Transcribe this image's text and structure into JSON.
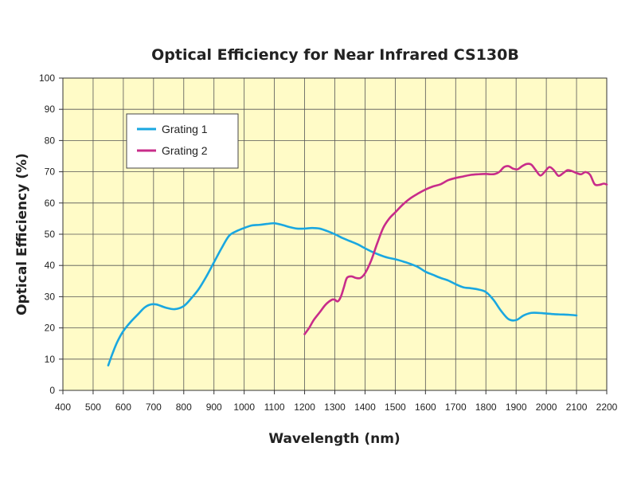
{
  "chart_data": {
    "type": "line",
    "title": "Optical Efficiency for Near Infrared CS130B",
    "xlabel": "Wavelength (nm)",
    "ylabel": "Optical Efficiency (%)",
    "xlim": [
      400,
      2200
    ],
    "ylim": [
      0,
      100
    ],
    "xticks": [
      400,
      500,
      600,
      700,
      800,
      900,
      1000,
      1100,
      1200,
      1300,
      1400,
      1500,
      1600,
      1700,
      1800,
      1900,
      2000,
      2100,
      2200
    ],
    "yticks": [
      0,
      10,
      20,
      30,
      40,
      50,
      60,
      70,
      80,
      90,
      100
    ],
    "grid": true,
    "plot_background": "#FFFBC7",
    "legend_position": "top-left",
    "series": [
      {
        "name": "Grating 1",
        "color": "#1AA7E0",
        "x": [
          550,
          565,
          580,
          600,
          625,
          650,
          670,
          690,
          710,
          740,
          770,
          800,
          825,
          850,
          875,
          900,
          925,
          950,
          975,
          1000,
          1025,
          1050,
          1075,
          1100,
          1125,
          1150,
          1175,
          1200,
          1225,
          1250,
          1275,
          1300,
          1325,
          1350,
          1375,
          1400,
          1425,
          1450,
          1475,
          1500,
          1525,
          1550,
          1575,
          1600,
          1625,
          1650,
          1675,
          1700,
          1725,
          1750,
          1775,
          1800,
          1825,
          1850,
          1875,
          1900,
          1925,
          1950,
          1975,
          2000,
          2025,
          2050,
          2075,
          2100
        ],
        "y": [
          8,
          12,
          15.5,
          19,
          22,
          24.5,
          26.5,
          27.5,
          27.5,
          26.5,
          26,
          27,
          29.5,
          32.5,
          36.5,
          41,
          45.5,
          49.5,
          51,
          52,
          52.8,
          53,
          53.3,
          53.5,
          53,
          52.3,
          51.8,
          51.8,
          52,
          51.8,
          51,
          50,
          48.8,
          47.8,
          46.8,
          45.5,
          44.3,
          43.3,
          42.5,
          42,
          41.3,
          40.5,
          39.5,
          38,
          37,
          36,
          35.2,
          34,
          33,
          32.7,
          32.3,
          31.5,
          29,
          25.5,
          22.8,
          22.5,
          24,
          24.8,
          24.8,
          24.6,
          24.4,
          24.3,
          24.2,
          24
        ]
      },
      {
        "name": "Grating 2",
        "color": "#C82C8A",
        "x": [
          1200,
          1215,
          1230,
          1250,
          1270,
          1290,
          1300,
          1310,
          1320,
          1330,
          1340,
          1355,
          1370,
          1385,
          1400,
          1420,
          1440,
          1460,
          1480,
          1500,
          1525,
          1550,
          1575,
          1600,
          1625,
          1650,
          1675,
          1700,
          1725,
          1750,
          1775,
          1800,
          1815,
          1830,
          1845,
          1860,
          1875,
          1890,
          1905,
          1920,
          1935,
          1950,
          1965,
          1980,
          1995,
          2010,
          2025,
          2040,
          2055,
          2070,
          2085,
          2100,
          2115,
          2130,
          2145,
          2160,
          2175,
          2190,
          2200
        ],
        "y": [
          18,
          20,
          22.5,
          25,
          27.5,
          29,
          29,
          28.5,
          30,
          33,
          36,
          36.5,
          36,
          36,
          37.5,
          41.5,
          47,
          52,
          55,
          57,
          59.5,
          61.5,
          63,
          64.3,
          65.3,
          66,
          67.3,
          68,
          68.5,
          69,
          69.2,
          69.3,
          69.2,
          69.3,
          70,
          71.5,
          71.8,
          71,
          70.8,
          71.8,
          72.5,
          72.3,
          70.5,
          68.8,
          70,
          71.5,
          70.5,
          68.7,
          69.5,
          70.5,
          70.2,
          69.6,
          69.2,
          69.9,
          69,
          66,
          65.8,
          66.2,
          65.9
        ]
      }
    ]
  }
}
